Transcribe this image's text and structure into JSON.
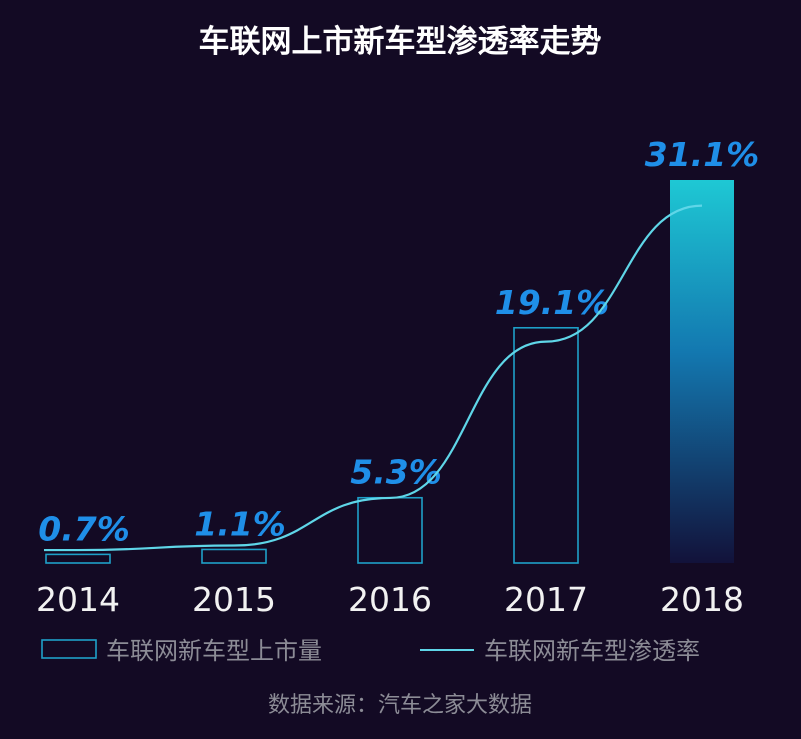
{
  "chart_data": {
    "type": "bar",
    "title": "车联网上市新车型渗透率走势",
    "categories": [
      "2014",
      "2015",
      "2016",
      "2017",
      "2018"
    ],
    "series": [
      {
        "name": "车联网新车型上市量",
        "kind": "bar",
        "values": [
          0.7,
          1.1,
          5.3,
          19.1,
          31.1
        ]
      },
      {
        "name": "车联网新车型渗透率",
        "kind": "line",
        "values": [
          0.7,
          1.1,
          5.3,
          19.1,
          31.1
        ]
      }
    ],
    "data_labels": [
      "0.7%",
      "1.1%",
      "5.3%",
      "19.1%",
      "31.1%"
    ],
    "unit": "%",
    "ylim": [
      0,
      31.1
    ],
    "grid": false,
    "legend_position": "bottom",
    "source": "数据来源：汽车之家大数据",
    "colors": {
      "background": "#130a24",
      "bar_outline": "#1ea0c8",
      "bar_fill_top": "#1ec8d4",
      "bar_fill_bottom": "#12123a",
      "line": "#5fd6e8",
      "label": "#1f8fe8"
    }
  }
}
